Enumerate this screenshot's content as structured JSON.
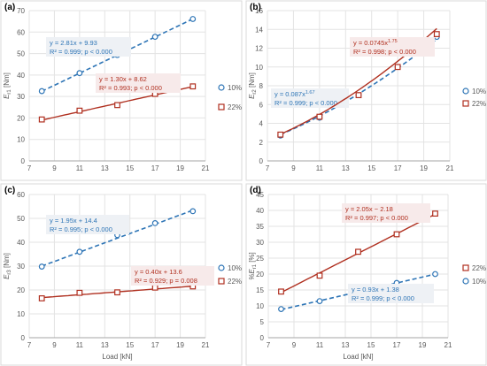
{
  "chart_data": [
    {
      "panel": "(a)",
      "type": "scatter",
      "ylabel_main": "E",
      "ylabel_sub": "r1",
      "ylabel_unit": " [Nm]",
      "xlabel": "",
      "xlim": [
        7,
        21
      ],
      "xticks": [
        7,
        9,
        11,
        13,
        15,
        17,
        19,
        21
      ],
      "ylim": [
        0,
        70
      ],
      "yticks": [
        0,
        10,
        20,
        30,
        40,
        50,
        60,
        70
      ],
      "grid": true,
      "legend_position": "right",
      "series": [
        {
          "name": "10%",
          "marker": "circle",
          "color": "#2e75b6",
          "fit": "dashed",
          "x": [
            8,
            11,
            14,
            17,
            20
          ],
          "y": [
            32.5,
            40.9,
            49.3,
            57.8,
            66.1
          ],
          "fit_eq": {
            "type": "linear",
            "a": 2.81,
            "b": 9.93
          },
          "equation": "y = 2.81x + 9.93",
          "r2": "R² = 0.999; p < 0.000"
        },
        {
          "name": "22%",
          "marker": "square",
          "color": "#b03020",
          "fit": "solid",
          "x": [
            8,
            11,
            14,
            17,
            20
          ],
          "y": [
            19.3,
            23.4,
            26.0,
            31.2,
            34.7
          ],
          "fit_eq": {
            "type": "linear",
            "a": 1.3,
            "b": 8.62
          },
          "equation": "y = 1.30x + 8.62",
          "r2": "R² = 0.993; p < 0.000"
        }
      ]
    },
    {
      "panel": "(b)",
      "type": "scatter",
      "ylabel_main": "E",
      "ylabel_sub": "r2",
      "ylabel_unit": " [Nm]",
      "xlabel": "",
      "xlim": [
        7,
        21
      ],
      "xticks": [
        7,
        9,
        11,
        13,
        15,
        17,
        19,
        21
      ],
      "ylim": [
        0,
        16
      ],
      "yticks": [
        0,
        2,
        4,
        6,
        8,
        10,
        12,
        14,
        16
      ],
      "grid": true,
      "legend_position": "right",
      "series": [
        {
          "name": "10%",
          "marker": "circle",
          "color": "#2e75b6",
          "fit": "dashed",
          "x": [
            8,
            11,
            14,
            17,
            20
          ],
          "y": [
            2.7,
            4.6,
            7.0,
            10.0,
            13.2
          ],
          "fit_eq": {
            "type": "power",
            "a": 0.087,
            "b": 1.67
          },
          "equation": "y = 0.087x",
          "equation_exp": "1.67",
          "r2": "R² = 0.999; p < 0.000"
        },
        {
          "name": "22%",
          "marker": "square",
          "color": "#b03020",
          "fit": "solid",
          "x": [
            8,
            11,
            14,
            17,
            20
          ],
          "y": [
            2.8,
            4.7,
            7.0,
            10.0,
            13.5
          ],
          "fit_eq": {
            "type": "power",
            "a": 0.0745,
            "b": 1.75
          },
          "equation": "y = 0.0745x",
          "equation_exp": "1.75",
          "r2": "R² = 0.998; p < 0.000"
        }
      ]
    },
    {
      "panel": "(c)",
      "type": "scatter",
      "ylabel_main": "E",
      "ylabel_sub": "r3",
      "ylabel_unit": " [Nm]",
      "xlabel": "Load [kN]",
      "xlim": [
        7,
        21
      ],
      "xticks": [
        7,
        9,
        11,
        13,
        15,
        17,
        19,
        21
      ],
      "ylim": [
        0,
        60
      ],
      "yticks": [
        0,
        10,
        20,
        30,
        40,
        50,
        60
      ],
      "grid": true,
      "legend_position": "right",
      "series": [
        {
          "name": "10%",
          "marker": "circle",
          "color": "#2e75b6",
          "fit": "dashed",
          "x": [
            8,
            11,
            14,
            17,
            20
          ],
          "y": [
            29.8,
            36.0,
            43.0,
            48.0,
            53.0
          ],
          "fit_eq": {
            "type": "linear",
            "a": 1.95,
            "b": 14.4
          },
          "equation": "y = 1.95x + 14.4",
          "r2": "R² = 0.995; p < 0.000"
        },
        {
          "name": "22%",
          "marker": "square",
          "color": "#b03020",
          "fit": "solid",
          "x": [
            8,
            11,
            14,
            17,
            20
          ],
          "y": [
            16.5,
            18.8,
            19.0,
            21.0,
            21.5
          ],
          "fit_eq": {
            "type": "linear",
            "a": 0.4,
            "b": 13.6
          },
          "equation": "y = 0.40x + 13.6",
          "r2": "R² = 0.929; p = 0.008"
        }
      ]
    },
    {
      "panel": "(d)",
      "type": "scatter",
      "ylabel_main": "%E",
      "ylabel_sub": "r1",
      "ylabel_unit": " [%]",
      "xlabel": "Load [kN]",
      "xlim": [
        7,
        21
      ],
      "xticks": [
        7,
        9,
        11,
        13,
        15,
        17,
        19,
        21
      ],
      "ylim": [
        0,
        45
      ],
      "yticks": [
        0,
        5,
        10,
        15,
        20,
        25,
        30,
        35,
        40,
        45
      ],
      "grid": true,
      "legend_position": "right",
      "series": [
        {
          "name": "22%",
          "marker": "square",
          "color": "#b03020",
          "fit": "solid",
          "x": [
            8,
            11,
            14,
            17,
            20
          ],
          "y": [
            14.5,
            19.5,
            27.0,
            32.5,
            39.0
          ],
          "fit_eq": {
            "type": "linear",
            "a": 2.05,
            "b": -2.18
          },
          "equation": "y = 2.05x − 2.18",
          "r2": "R² = 0.997; p < 0.000"
        },
        {
          "name": "10%",
          "marker": "circle",
          "color": "#2e75b6",
          "fit": "dashed",
          "x": [
            8,
            11,
            14,
            17,
            20
          ],
          "y": [
            9.0,
            11.5,
            14.2,
            17.2,
            20.0
          ],
          "fit_eq": {
            "type": "linear",
            "a": 0.93,
            "b": 1.38
          },
          "equation": "y = 0.93x + 1.38",
          "r2": "R² = 0.999; p < 0.000"
        }
      ]
    }
  ]
}
